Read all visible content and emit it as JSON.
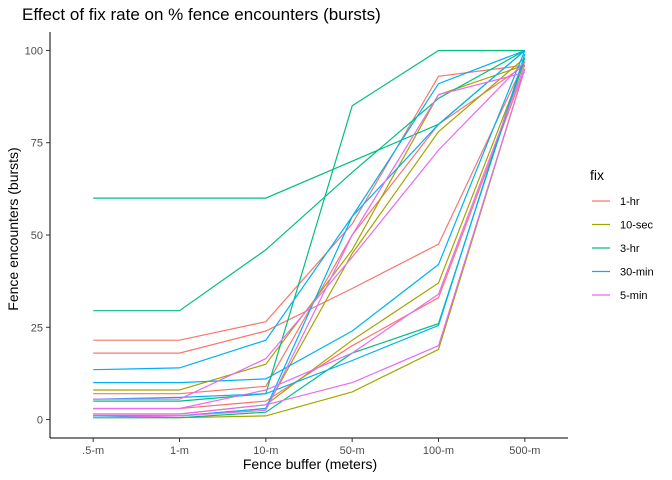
{
  "chart_data": {
    "type": "line",
    "title": "Effect of fix rate on % fence encounters (bursts)",
    "xlabel": "Fence buffer (meters)",
    "ylabel": "Fence encounters (bursts)",
    "categories": [
      ".5-m",
      "1-m",
      "10-m",
      "50-m",
      "100-m",
      "500-m"
    ],
    "ylim": [
      -5,
      105
    ],
    "yticks": [
      0,
      25,
      50,
      75,
      100
    ],
    "grid": false,
    "legend": {
      "title": "fix",
      "placement": "right",
      "entries": [
        {
          "label": "1-hr",
          "color": "#F8766D"
        },
        {
          "label": "10-sec",
          "color": "#A3A500"
        },
        {
          "label": "3-hr",
          "color": "#00BF7D"
        },
        {
          "label": "30-min",
          "color": "#00B0F6"
        },
        {
          "label": "5-min",
          "color": "#E76BF3"
        }
      ]
    },
    "series": [
      {
        "fix": "1-hr",
        "values": [
          21.5,
          21.5,
          26.5,
          53,
          93,
          96
        ]
      },
      {
        "fix": "1-hr",
        "values": [
          18,
          18,
          24,
          35.5,
          47.5,
          97
        ]
      },
      {
        "fix": "1-hr",
        "values": [
          7,
          7,
          9,
          50,
          80,
          96
        ]
      },
      {
        "fix": "1-hr",
        "values": [
          3,
          3,
          5,
          20,
          33,
          95
        ]
      },
      {
        "fix": "10-sec",
        "values": [
          8,
          8,
          15,
          46,
          88,
          96
        ]
      },
      {
        "fix": "10-sec",
        "values": [
          1.5,
          1.5,
          4,
          21.5,
          37,
          97
        ]
      },
      {
        "fix": "10-sec",
        "values": [
          0.5,
          0.5,
          1,
          7.5,
          19,
          95
        ]
      },
      {
        "fix": "10-sec",
        "values": [
          1,
          1,
          3,
          45,
          78,
          98
        ]
      },
      {
        "fix": "3-hr",
        "values": [
          60,
          60,
          60,
          70,
          80,
          100
        ]
      },
      {
        "fix": "3-hr",
        "values": [
          29.5,
          29.5,
          46,
          67,
          87,
          100
        ]
      },
      {
        "fix": "3-hr",
        "values": [
          5,
          5,
          7,
          85,
          100,
          100
        ]
      },
      {
        "fix": "3-hr",
        "values": [
          0.5,
          0.5,
          2,
          18,
          26,
          98
        ]
      },
      {
        "fix": "30-min",
        "values": [
          13.5,
          14,
          21.5,
          55,
          91,
          100
        ]
      },
      {
        "fix": "30-min",
        "values": [
          10,
          10,
          11,
          24,
          42,
          100
        ]
      },
      {
        "fix": "30-min",
        "values": [
          5.5,
          6,
          7,
          16,
          25.5,
          99
        ]
      },
      {
        "fix": "30-min",
        "values": [
          1,
          1,
          3,
          55,
          80,
          100
        ]
      },
      {
        "fix": "5-min",
        "values": [
          5.5,
          5.5,
          16.5,
          44,
          73,
          97
        ]
      },
      {
        "fix": "5-min",
        "values": [
          3,
          3,
          8,
          18,
          34,
          96
        ]
      },
      {
        "fix": "5-min",
        "values": [
          1.5,
          1.5,
          4,
          10,
          20,
          95
        ]
      },
      {
        "fix": "5-min",
        "values": [
          0.5,
          1,
          2.5,
          50,
          88,
          94
        ]
      }
    ]
  }
}
